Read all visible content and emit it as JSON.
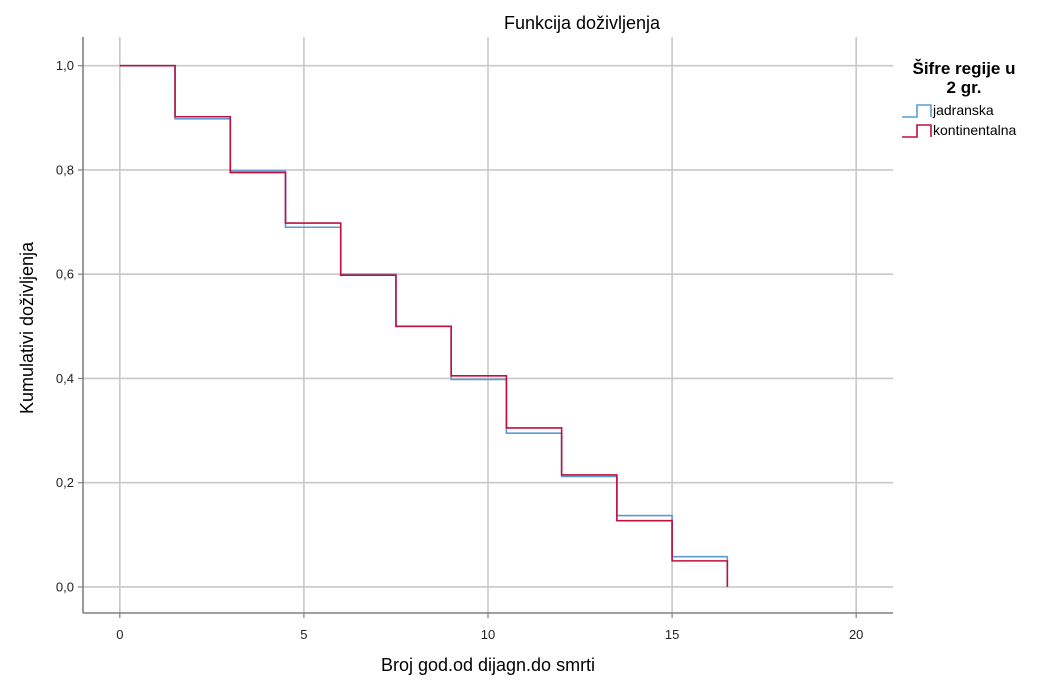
{
  "chart_data": {
    "type": "line",
    "step": true,
    "title": "Funkcija doživljenja",
    "xlabel": "Broj god.od dijagn.do smrti",
    "ylabel": "Kumulativi doživljenja",
    "xlim": [
      -1,
      21
    ],
    "ylim": [
      -0.05,
      1.055
    ],
    "x_ticks": [
      {
        "value": 0,
        "label": "0"
      },
      {
        "value": 5,
        "label": "5"
      },
      {
        "value": 10,
        "label": "10"
      },
      {
        "value": 15,
        "label": "15"
      },
      {
        "value": 20,
        "label": "20"
      }
    ],
    "y_ticks": [
      {
        "value": 0.0,
        "label": "0,0"
      },
      {
        "value": 0.2,
        "label": "0,2"
      },
      {
        "value": 0.4,
        "label": "0,4"
      },
      {
        "value": 0.6,
        "label": "0,6"
      },
      {
        "value": 0.8,
        "label": "0,8"
      },
      {
        "value": 1.0,
        "label": "1,0"
      }
    ],
    "grid": true,
    "legend": {
      "title_lines": [
        "Šifre regije u",
        "2 gr."
      ],
      "placement": "right"
    },
    "series": [
      {
        "name": "jadranska",
        "color": "#5b9bd5",
        "x": [
          0,
          1.5,
          3,
          4.5,
          6,
          7.5,
          9,
          10.5,
          12,
          13.5,
          15,
          16.5
        ],
        "y": [
          1.0,
          0.898,
          0.798,
          0.69,
          0.6,
          0.5,
          0.398,
          0.295,
          0.212,
          0.137,
          0.058,
          0.0
        ]
      },
      {
        "name": "kontinentalna",
        "color": "#c0103c",
        "x": [
          0,
          1.5,
          3,
          4.5,
          6,
          7.5,
          9,
          10.5,
          12,
          13.5,
          15,
          16.5
        ],
        "y": [
          1.0,
          0.902,
          0.795,
          0.698,
          0.598,
          0.5,
          0.405,
          0.305,
          0.215,
          0.127,
          0.05,
          0.0
        ]
      }
    ]
  }
}
